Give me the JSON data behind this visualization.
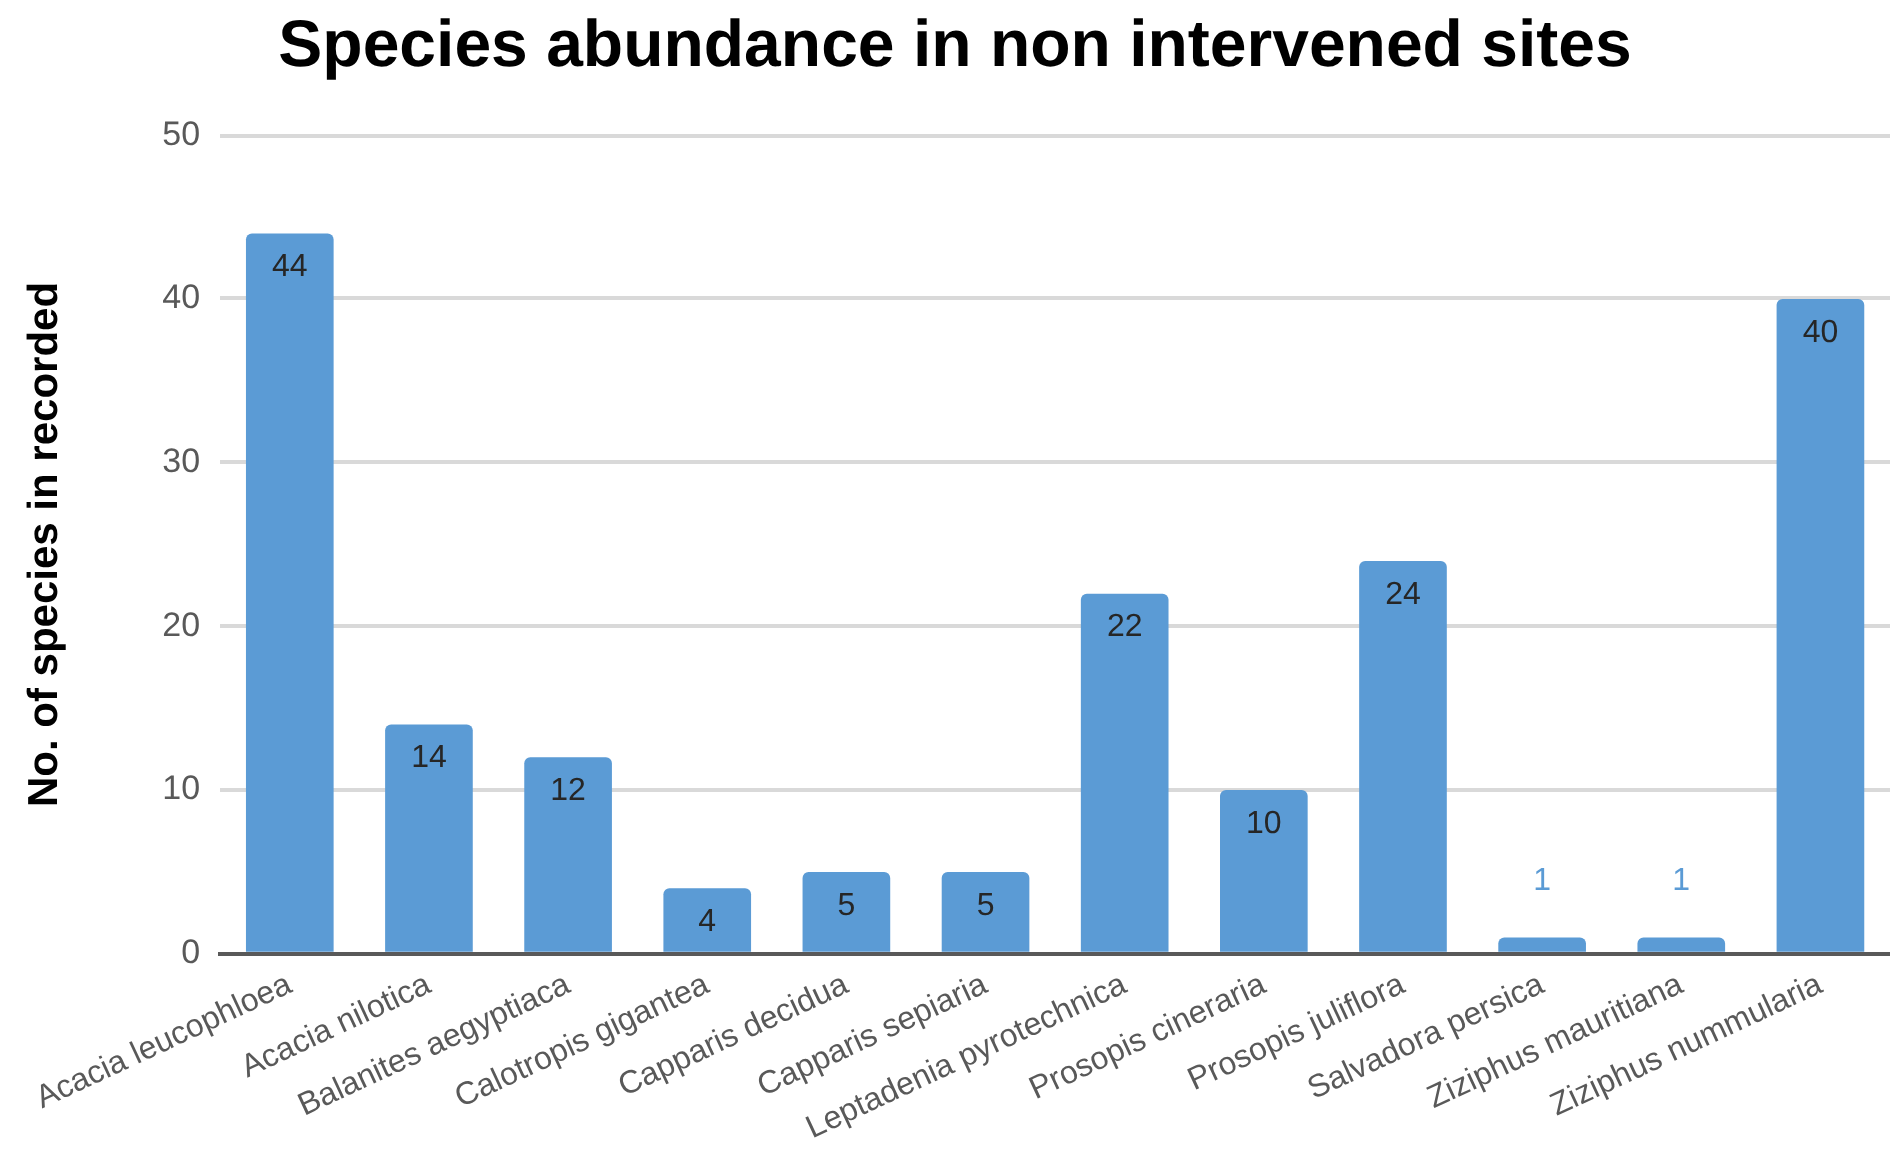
{
  "chart_data": {
    "type": "bar",
    "title": "Species abundance in non intervened sites",
    "ylabel": "No. of species in recorded",
    "categories": [
      "Acacia leucophloea",
      "Acacia nilotica",
      "Balanites aegyptiaca",
      "Calotropis gigantea",
      "Capparis decidua",
      "Capparis sepiaria",
      "Leptadenia pyrotechnica",
      "Prosopis cineraria",
      "Prosopis juliflora",
      "Salvadora persica",
      "Ziziphus mauritiana",
      "Ziziphus nummularia"
    ],
    "values": [
      44,
      14,
      12,
      4,
      5,
      5,
      22,
      10,
      24,
      1,
      1,
      40
    ],
    "color": "#5b9bd5",
    "ylim": [
      0,
      50
    ],
    "yticks": [
      0,
      10,
      20,
      30,
      40,
      50
    ],
    "grid": "y",
    "data_labels": true,
    "legend": false
  }
}
